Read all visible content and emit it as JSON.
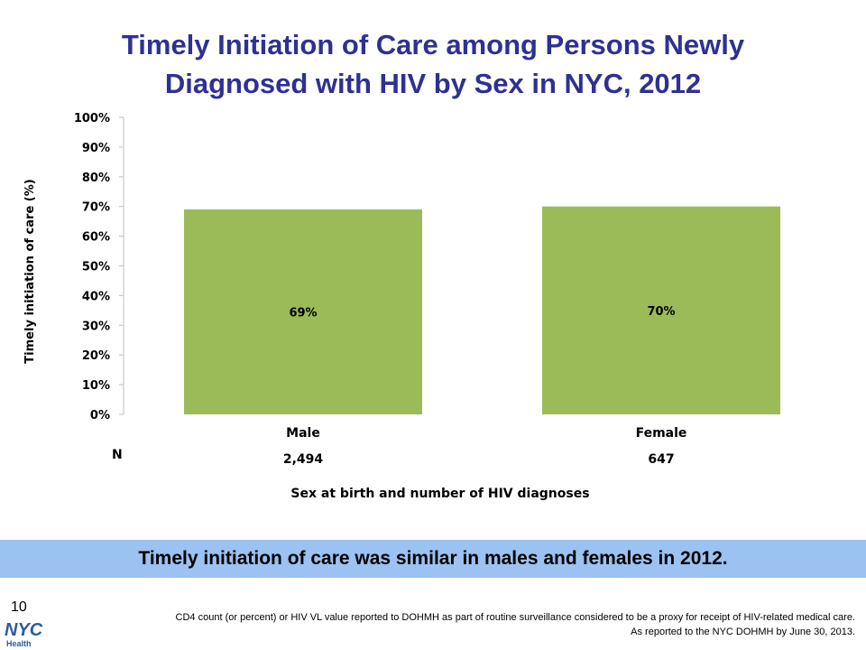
{
  "page": {
    "title_line1": "Timely Initiation of Care among Persons Newly",
    "title_line2": "Diagnosed with HIV by Sex in NYC, 2012",
    "banner_text": "Timely initiation of care was similar in males and females in 2012.",
    "page_number": "10",
    "footnote_line1": "CD4 count (or percent)  or HIV VL value reported to DOHMH as part of routine surveillance considered to be a proxy for receipt of HIV-related medical care.",
    "footnote_line2": "As reported to the NYC DOHMH by June 30, 2013.",
    "logo_text": "NYC",
    "logo_subtext": "Health"
  },
  "colors": {
    "title": "#2E3192",
    "bar": "#9BBB59",
    "banner": "#9BC2F0",
    "logo": "#2E5C9E"
  },
  "chart_data": {
    "type": "bar",
    "title": "",
    "xlabel": "Sex at birth and number of HIV diagnoses",
    "ylabel": "Timely initiation of care (%)",
    "categories": [
      "Male",
      "Female"
    ],
    "values": [
      69,
      70
    ],
    "data_labels": [
      "69%",
      "70%"
    ],
    "n_label": "N",
    "n_values": [
      "2,494",
      "647"
    ],
    "yticks": [
      "0%",
      "10%",
      "20%",
      "30%",
      "40%",
      "50%",
      "60%",
      "70%",
      "80%",
      "90%",
      "100%"
    ],
    "ylim": [
      0,
      100
    ],
    "grid": false,
    "legend": false
  }
}
